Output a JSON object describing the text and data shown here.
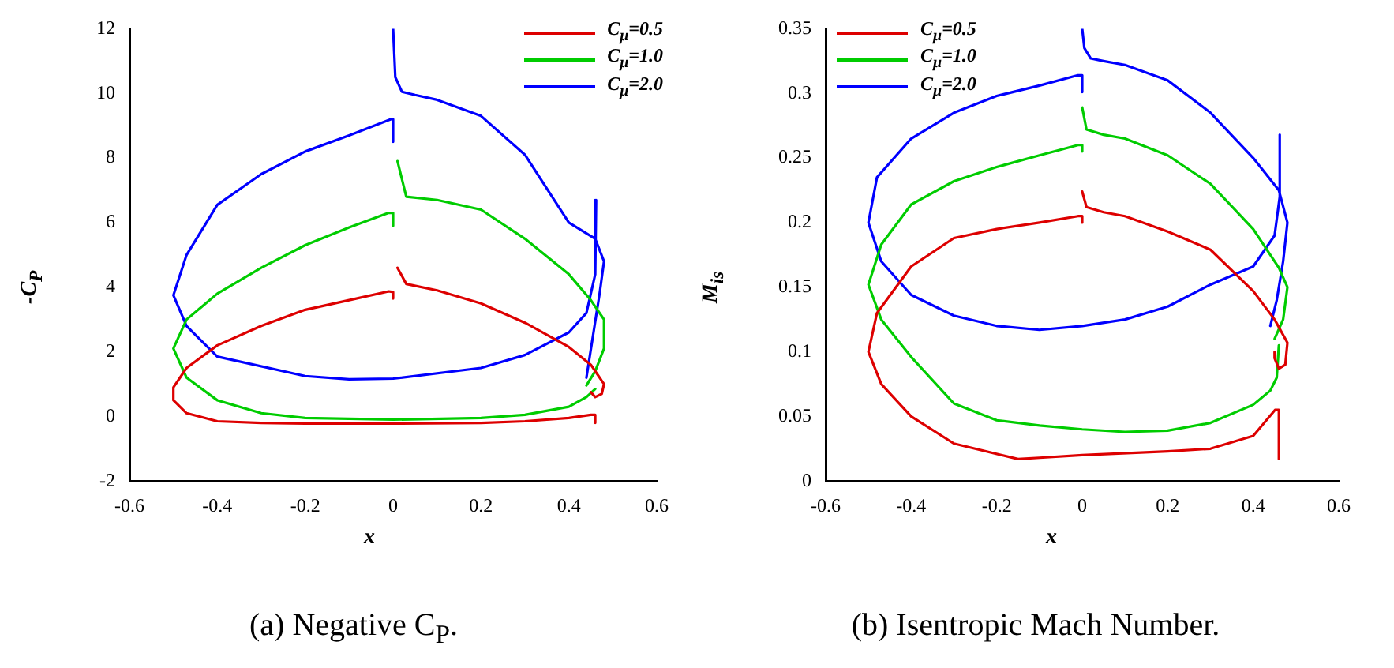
{
  "chart_data": [
    {
      "type": "line",
      "title": "(a) Negative C$_{P}$.",
      "xlabel": "x",
      "ylabel": "-C$_{P}$",
      "xlim": [
        -0.6,
        0.6
      ],
      "xticks": [
        -0.6,
        -0.4,
        -0.2,
        0,
        0.2,
        0.4,
        0.6
      ],
      "ylim": [
        -2,
        12
      ],
      "yticks": [
        -2,
        0,
        2,
        4,
        6,
        8,
        10,
        12
      ],
      "legend": "top right",
      "grid": false,
      "series": [
        {
          "name": "C$_{μ}$=0.5",
          "color": "#dd0000",
          "x": [
            0.46,
            0.46,
            0.45,
            0.4,
            0.3,
            0.2,
            0,
            -0.2,
            -0.3,
            -0.4,
            -0.47,
            -0.5,
            -0.5,
            -0.47,
            -0.4,
            -0.3,
            -0.2,
            -0.1,
            -0.01,
            0,
            0,
            null,
            0.01,
            0.03,
            0.1,
            0.2,
            0.3,
            0.4,
            0.45,
            0.48,
            0.475,
            0.46,
            0.45
          ],
          "values": [
            -0.2,
            0.05,
            0.05,
            -0.05,
            -0.15,
            -0.2,
            -0.22,
            -0.22,
            -0.2,
            -0.15,
            0.1,
            0.5,
            0.9,
            1.5,
            2.2,
            2.8,
            3.3,
            3.6,
            3.87,
            3.85,
            3.65,
            null,
            4.6,
            4.1,
            3.9,
            3.5,
            2.9,
            2.15,
            1.6,
            1.0,
            0.7,
            0.6,
            0.75
          ]
        },
        {
          "name": "C$_{μ}$=1.0",
          "color": "#00cc00",
          "x": [
            0.46,
            0.44,
            0.4,
            0.3,
            0.2,
            0,
            -0.2,
            -0.3,
            -0.4,
            -0.47,
            -0.5,
            -0.47,
            -0.4,
            -0.3,
            -0.2,
            -0.1,
            -0.01,
            0,
            0,
            null,
            0.01,
            0.03,
            0.1,
            0.2,
            0.3,
            0.4,
            0.45,
            0.48,
            0.48,
            0.46,
            0.44
          ],
          "values": [
            0.85,
            0.6,
            0.3,
            0.05,
            -0.05,
            -0.1,
            -0.05,
            0.1,
            0.5,
            1.2,
            2.1,
            3.0,
            3.8,
            4.6,
            5.3,
            5.85,
            6.3,
            6.3,
            5.9,
            null,
            7.9,
            6.8,
            6.7,
            6.4,
            5.5,
            4.4,
            3.6,
            3.0,
            2.1,
            1.4,
            0.96
          ]
        },
        {
          "name": "C$_{μ}$=2.0",
          "color": "#0000ff",
          "x": [
            0.462,
            0.46,
            0.44,
            0.4,
            0.3,
            0.2,
            0,
            -0.1,
            -0.2,
            -0.4,
            -0.47,
            -0.5,
            -0.47,
            -0.4,
            -0.3,
            -0.2,
            -0.1,
            -0.005,
            0,
            0,
            null,
            0,
            0.005,
            0.02,
            0.05,
            0.1,
            0.2,
            0.3,
            0.4,
            0.46,
            0.48,
            0.47,
            0.455,
            0.44
          ],
          "values": [
            6.7,
            4.4,
            3.2,
            2.6,
            1.9,
            1.5,
            1.17,
            1.15,
            1.25,
            1.85,
            2.8,
            3.75,
            5.0,
            6.55,
            7.5,
            8.2,
            8.7,
            9.2,
            9.2,
            8.5,
            null,
            12,
            10.5,
            10.05,
            9.95,
            9.8,
            9.3,
            8.1,
            6.0,
            5.5,
            4.8,
            3.8,
            2.5,
            1.2
          ]
        }
      ]
    },
    {
      "type": "line",
      "title": "(b) Isentropic Mach Number.",
      "xlabel": "x",
      "ylabel": "M$_{is}$",
      "xlim": [
        -0.6,
        0.6
      ],
      "xticks": [
        -0.6,
        -0.4,
        -0.2,
        0,
        0.2,
        0.4,
        0.6
      ],
      "ylim": [
        0,
        0.35
      ],
      "yticks": [
        0,
        0.05,
        0.1,
        0.15,
        0.2,
        0.25,
        0.3,
        0.35
      ],
      "legend": "top left",
      "grid": false,
      "series": [
        {
          "name": "C$_{μ}$=0.5",
          "color": "#dd0000",
          "x": [
            0.46,
            0.46,
            0.451,
            0.4,
            0.3,
            0.2,
            0,
            -0.1,
            -0.15,
            -0.3,
            -0.4,
            -0.47,
            -0.5,
            -0.48,
            -0.4,
            -0.3,
            -0.2,
            -0.1,
            -0.01,
            0,
            0,
            null,
            0,
            0.01,
            0.05,
            0.1,
            0.2,
            0.3,
            0.4,
            0.45,
            0.48,
            0.475,
            0.46,
            0.45,
            0.45
          ],
          "values": [
            0.017,
            0.055,
            0.055,
            0.035,
            0.025,
            0.023,
            0.02,
            0.018,
            0.017,
            0.029,
            0.05,
            0.075,
            0.1,
            0.13,
            0.166,
            0.188,
            0.195,
            0.2,
            0.205,
            0.205,
            0.2,
            null,
            0.224,
            0.212,
            0.208,
            0.205,
            0.193,
            0.179,
            0.147,
            0.125,
            0.107,
            0.09,
            0.087,
            0.095,
            0.1
          ]
        },
        {
          "name": "C$_{μ}$=1.0",
          "color": "#00cc00",
          "x": [
            0.46,
            0.455,
            0.44,
            0.4,
            0.3,
            0.2,
            0.1,
            0,
            -0.1,
            -0.2,
            -0.3,
            -0.4,
            -0.47,
            -0.5,
            -0.47,
            -0.4,
            -0.3,
            -0.2,
            -0.1,
            -0.01,
            0,
            0,
            null,
            0,
            0.01,
            0.05,
            0.1,
            0.2,
            0.3,
            0.4,
            0.46,
            0.48,
            0.47,
            0.45
          ],
          "values": [
            0.105,
            0.08,
            0.07,
            0.059,
            0.045,
            0.039,
            0.038,
            0.04,
            0.043,
            0.047,
            0.06,
            0.096,
            0.125,
            0.152,
            0.183,
            0.214,
            0.232,
            0.243,
            0.252,
            0.26,
            0.26,
            0.255,
            null,
            0.289,
            0.272,
            0.268,
            0.265,
            0.252,
            0.23,
            0.195,
            0.165,
            0.15,
            0.125,
            0.11
          ]
        },
        {
          "name": "C$_{μ}$=2.0",
          "color": "#0000ff",
          "x": [
            0.462,
            0.462,
            0.45,
            0.4,
            0.3,
            0.2,
            0.1,
            0,
            -0.1,
            -0.2,
            -0.3,
            -0.4,
            -0.47,
            -0.5,
            -0.48,
            -0.4,
            -0.3,
            -0.2,
            -0.1,
            -0.01,
            0,
            0,
            null,
            0,
            0.005,
            0.02,
            0.05,
            0.1,
            0.2,
            0.3,
            0.4,
            0.46,
            0.48,
            0.47,
            0.455,
            0.44
          ],
          "values": [
            0.268,
            0.22,
            0.19,
            0.166,
            0.152,
            0.135,
            0.125,
            0.12,
            0.117,
            0.12,
            0.128,
            0.144,
            0.17,
            0.2,
            0.235,
            0.265,
            0.285,
            0.298,
            0.306,
            0.314,
            0.314,
            0.301,
            null,
            0.35,
            0.335,
            0.327,
            0.325,
            0.322,
            0.31,
            0.285,
            0.25,
            0.225,
            0.2,
            0.17,
            0.14,
            0.12
          ]
        }
      ]
    }
  ]
}
